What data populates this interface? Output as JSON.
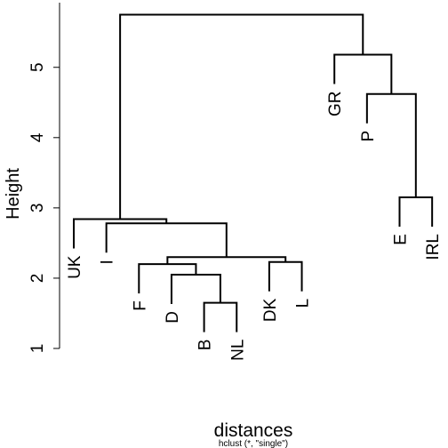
{
  "chart_data": {
    "type": "dendrogram",
    "title": "distances",
    "subtitle": "hclust (*, \"single\")",
    "y_label": "Height",
    "labels": [
      "UK",
      "I",
      "F",
      "D",
      "B",
      "NL",
      "DK",
      "L",
      "GR",
      "P",
      "E",
      "IRL"
    ],
    "merges": [
      {
        "pair": [
          -5,
          -6
        ],
        "height": 1.65
      },
      {
        "pair": [
          -4,
          1
        ],
        "height": 2.05
      },
      {
        "pair": [
          -3,
          2
        ],
        "height": 2.2
      },
      {
        "pair": [
          -7,
          -8
        ],
        "height": 2.23
      },
      {
        "pair": [
          3,
          4
        ],
        "height": 2.3
      },
      {
        "pair": [
          -2,
          5
        ],
        "height": 2.78
      },
      {
        "pair": [
          -1,
          6
        ],
        "height": 2.84
      },
      {
        "pair": [
          -11,
          -12
        ],
        "height": 3.15
      },
      {
        "pair": [
          -10,
          8
        ],
        "height": 4.62
      },
      {
        "pair": [
          -9,
          9
        ],
        "height": 5.18
      },
      {
        "pair": [
          7,
          10
        ],
        "height": 5.75
      }
    ],
    "color": "#000000",
    "ylim": [
      1,
      5.92
    ],
    "yticks": [
      1,
      2,
      3,
      4,
      5
    ]
  }
}
